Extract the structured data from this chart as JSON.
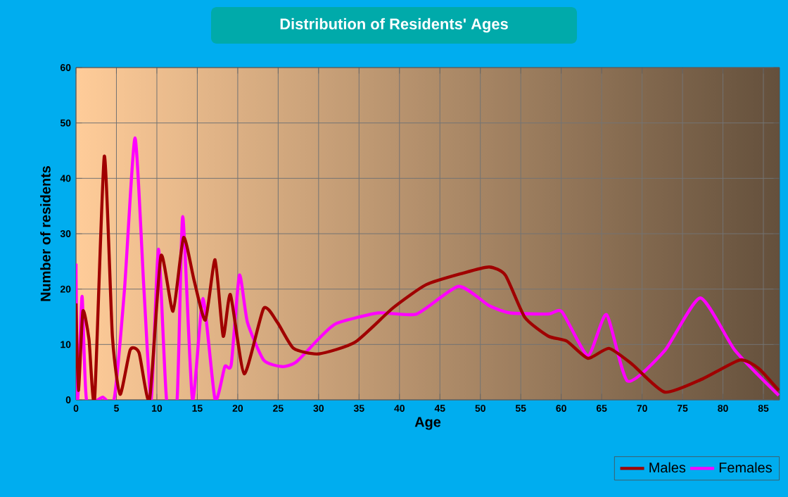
{
  "chart_data": {
    "type": "line",
    "title": "Distribution of Residents' Ages",
    "xlabel": "Age",
    "ylabel": "Number of residents",
    "xlim": [
      0,
      87
    ],
    "xticks": [
      0,
      5,
      10,
      15,
      20,
      25,
      30,
      35,
      40,
      45,
      50,
      55,
      60,
      65,
      70,
      75,
      80,
      85
    ],
    "ylim": [
      0,
      60
    ],
    "yticks": [
      0,
      10,
      20,
      30,
      40,
      50,
      60
    ],
    "grid": true,
    "legend": "bottom right",
    "marker": "none",
    "line_style": "solid",
    "series": [
      {
        "name": "Males",
        "color": "#a00000",
        "x": [
          0,
          0.3,
          0.85,
          1.6,
          2.3,
          3.5,
          4.5,
          5.45,
          6.7,
          7.8,
          9.1,
          10.5,
          12,
          13.3,
          14.6,
          16,
          17.2,
          18.2,
          19.1,
          20.8,
          23.2,
          24.9,
          26.9,
          30,
          34.5,
          39.2,
          43.3,
          47.9,
          51.1,
          53.1,
          55.5,
          58.4,
          60.7,
          63.3,
          65.9,
          68.8,
          72.8,
          77.5,
          82.1,
          84.4,
          86.9
        ],
        "values": [
          17.4,
          1.7,
          16,
          11,
          0,
          44,
          11.5,
          1,
          9,
          8.5,
          0,
          26,
          16,
          29.3,
          21.6,
          14.4,
          25.3,
          11.5,
          19,
          4.7,
          16.5,
          14,
          9.3,
          8.3,
          10.4,
          16.6,
          20.8,
          22.9,
          24,
          22.5,
          14.9,
          11.5,
          10.6,
          7.5,
          9.3,
          6.4,
          1.4,
          3.8,
          7.2,
          5.7,
          1.7
        ]
      },
      {
        "name": "Females",
        "color": "#ff00ff",
        "x": [
          0,
          0.2,
          0.75,
          1.3,
          3.3,
          4.7,
          6,
          7.3,
          8.4,
          9.3,
          10.2,
          11.2,
          12.5,
          13.2,
          14.4,
          15.7,
          17.2,
          18.4,
          19.2,
          20.2,
          21.2,
          23.2,
          25.5,
          27.2,
          30,
          32.2,
          37.4,
          42.1,
          47.3,
          51.1,
          53.7,
          58.4,
          60.1,
          63.3,
          65.6,
          68.2,
          72.8,
          77.2,
          81.5,
          86.9
        ],
        "values": [
          24.6,
          0,
          18.7,
          0,
          0.5,
          0,
          20,
          47.3,
          20,
          0,
          27.2,
          0,
          0,
          33.1,
          0,
          18.3,
          0,
          6,
          6.4,
          22.5,
          14,
          7.2,
          6,
          6.8,
          11,
          13.8,
          15.7,
          15.5,
          20.5,
          17,
          15.7,
          15.5,
          15.9,
          8,
          15.4,
          3.4,
          8.9,
          18.4,
          8.9,
          0.8
        ]
      }
    ]
  }
}
